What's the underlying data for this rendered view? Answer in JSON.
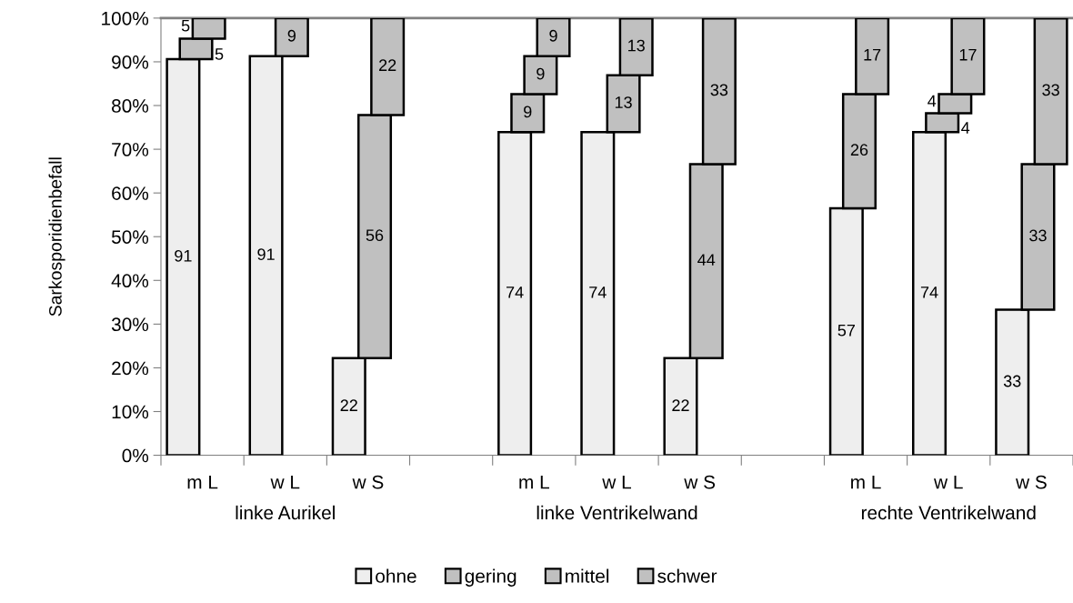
{
  "chart_data": {
    "type": "bar",
    "stacked": true,
    "ylabel": "Sarkosporidienbefall",
    "categories": [
      "m L",
      "w L",
      "w S",
      null,
      "m L",
      "w L",
      "w S",
      null,
      "m L",
      "w L",
      "w S"
    ],
    "annotations": [
      "linke Aurikel",
      "linke Ventrikelwand",
      "rechte Ventrikelwand"
    ],
    "series": [
      {
        "name": "ohne",
        "color": "#eeeeee",
        "values": [
          90.6,
          91.3,
          22.2,
          null,
          73.9,
          73.9,
          22.2,
          null,
          56.5,
          73.9,
          33.3
        ],
        "value_labels": [
          "91",
          "91",
          "22",
          null,
          "74",
          "74",
          "22",
          null,
          "57",
          "74",
          "33"
        ]
      },
      {
        "name": "gering",
        "color": "#c0c0c0",
        "values": [
          4.7,
          null,
          null,
          null,
          8.7,
          null,
          null,
          null,
          26.1,
          4.35,
          null
        ],
        "value_labels": [
          "5",
          null,
          null,
          null,
          "9",
          null,
          null,
          null,
          "26",
          "4",
          null
        ]
      },
      {
        "name": "mittel",
        "color": "#c0c0c0",
        "values": [
          4.7,
          8.7,
          55.6,
          null,
          8.7,
          13.0,
          44.4,
          null,
          17.4,
          4.35,
          33.3
        ],
        "value_labels": [
          "5",
          "9",
          "56",
          null,
          "9",
          "13",
          "44",
          null,
          "17",
          "4",
          "33"
        ]
      },
      {
        "name": "schwer",
        "color": "#c0c0c0",
        "values": [
          null,
          null,
          22.2,
          null,
          8.7,
          13.0,
          33.3,
          null,
          null,
          17.4,
          33.3
        ],
        "value_labels": [
          null,
          null,
          "22",
          null,
          "9",
          "13",
          "33",
          null,
          null,
          "17",
          "33"
        ]
      }
    ],
    "legend": "bottom",
    "ylim": [
      0,
      100
    ],
    "yticks": [
      {
        "value": 0,
        "label": "0%"
      },
      {
        "value": 10,
        "label": "10%"
      },
      {
        "value": 20,
        "label": "20%"
      },
      {
        "value": 30,
        "label": "30%"
      },
      {
        "value": 40,
        "label": "40%"
      },
      {
        "value": 50,
        "label": "50%"
      },
      {
        "value": 60,
        "label": "60%"
      },
      {
        "value": 70,
        "label": "70%"
      },
      {
        "value": 80,
        "label": "80%"
      },
      {
        "value": 90,
        "label": "90%"
      },
      {
        "value": 100,
        "label": "100%"
      }
    ]
  }
}
